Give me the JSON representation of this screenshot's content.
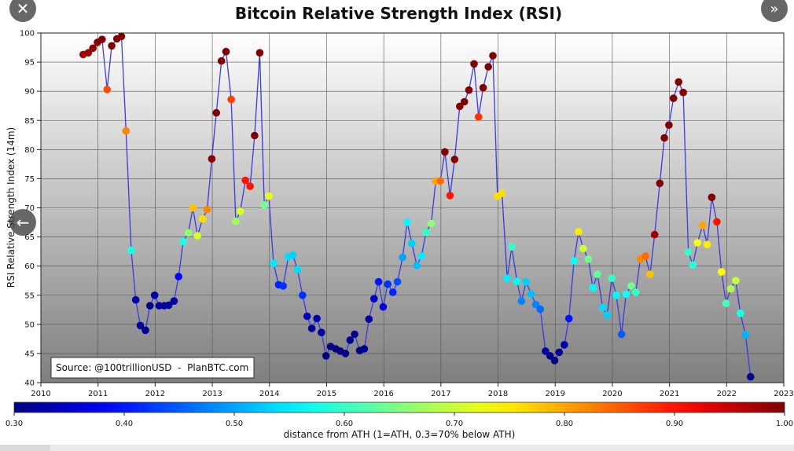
{
  "controls": {
    "close_glyph": "✕",
    "next_glyph": "»",
    "prev_glyph": "←"
  },
  "chart_data": {
    "type": "scatter",
    "title": "Bitcoin Relative Strength Index (RSI)",
    "ylabel": "RSI Relative Strength Index (14m)",
    "xlabel": "",
    "xlim": [
      2010,
      2023
    ],
    "ylim": [
      40,
      100
    ],
    "x_ticks": [
      2010,
      2011,
      2012,
      2013,
      2014,
      2015,
      2016,
      2017,
      2018,
      2019,
      2020,
      2021,
      2022,
      2023
    ],
    "y_ticks": [
      40,
      45,
      50,
      55,
      60,
      65,
      70,
      75,
      80,
      85,
      90,
      95,
      100
    ],
    "grid": true,
    "line_color": "#3a3adf",
    "source_note": "Source: @100trillionUSD  -  PlanBTC.com",
    "colorbar": {
      "label": "distance from ATH (1=ATH, 0.3=70% below ATH)",
      "min": 0.3,
      "max": 1.0,
      "ticks": [
        "0.30",
        "0.40",
        "0.50",
        "0.60",
        "0.70",
        "0.80",
        "0.90",
        "1.00"
      ]
    },
    "points": [
      {
        "x": 2010.74,
        "y": 96.3,
        "c": 0.98
      },
      {
        "x": 2010.83,
        "y": 96.6,
        "c": 0.98
      },
      {
        "x": 2010.91,
        "y": 97.4,
        "c": 0.99
      },
      {
        "x": 2010.99,
        "y": 98.4,
        "c": 1.0
      },
      {
        "x": 2011.07,
        "y": 98.9,
        "c": 1.0
      },
      {
        "x": 2011.16,
        "y": 90.3,
        "c": 0.86
      },
      {
        "x": 2011.24,
        "y": 97.8,
        "c": 1.0
      },
      {
        "x": 2011.33,
        "y": 99.0,
        "c": 1.0
      },
      {
        "x": 2011.41,
        "y": 99.4,
        "c": 1.0
      },
      {
        "x": 2011.49,
        "y": 83.2,
        "c": 0.82
      },
      {
        "x": 2011.58,
        "y": 62.7,
        "c": 0.58
      },
      {
        "x": 2011.66,
        "y": 54.2,
        "c": 0.33
      },
      {
        "x": 2011.74,
        "y": 49.8,
        "c": 0.32
      },
      {
        "x": 2011.83,
        "y": 49.0,
        "c": 0.31
      },
      {
        "x": 2011.91,
        "y": 53.2,
        "c": 0.31
      },
      {
        "x": 2011.99,
        "y": 55.0,
        "c": 0.32
      },
      {
        "x": 2012.07,
        "y": 53.2,
        "c": 0.32
      },
      {
        "x": 2012.16,
        "y": 53.2,
        "c": 0.32
      },
      {
        "x": 2012.24,
        "y": 53.3,
        "c": 0.32
      },
      {
        "x": 2012.33,
        "y": 54.0,
        "c": 0.32
      },
      {
        "x": 2012.41,
        "y": 58.2,
        "c": 0.39
      },
      {
        "x": 2012.49,
        "y": 64.2,
        "c": 0.58
      },
      {
        "x": 2012.58,
        "y": 65.7,
        "c": 0.66
      },
      {
        "x": 2012.66,
        "y": 70.0,
        "c": 0.78
      },
      {
        "x": 2012.74,
        "y": 65.2,
        "c": 0.71
      },
      {
        "x": 2012.83,
        "y": 68.1,
        "c": 0.76
      },
      {
        "x": 2012.91,
        "y": 69.7,
        "c": 0.82
      },
      {
        "x": 2012.99,
        "y": 78.4,
        "c": 0.99
      },
      {
        "x": 2013.07,
        "y": 86.3,
        "c": 1.0
      },
      {
        "x": 2013.16,
        "y": 95.2,
        "c": 1.0
      },
      {
        "x": 2013.24,
        "y": 96.8,
        "c": 1.0
      },
      {
        "x": 2013.33,
        "y": 88.6,
        "c": 0.87
      },
      {
        "x": 2013.41,
        "y": 67.7,
        "c": 0.67
      },
      {
        "x": 2013.49,
        "y": 69.4,
        "c": 0.71
      },
      {
        "x": 2013.58,
        "y": 74.7,
        "c": 0.9
      },
      {
        "x": 2013.66,
        "y": 73.7,
        "c": 0.9
      },
      {
        "x": 2013.74,
        "y": 82.4,
        "c": 1.0
      },
      {
        "x": 2013.83,
        "y": 96.6,
        "c": 1.0
      },
      {
        "x": 2013.91,
        "y": 70.5,
        "c": 0.64
      },
      {
        "x": 2013.99,
        "y": 72.0,
        "c": 0.72
      },
      {
        "x": 2014.07,
        "y": 60.5,
        "c": 0.55
      },
      {
        "x": 2014.16,
        "y": 56.8,
        "c": 0.41
      },
      {
        "x": 2014.24,
        "y": 56.6,
        "c": 0.42
      },
      {
        "x": 2014.33,
        "y": 61.6,
        "c": 0.54
      },
      {
        "x": 2014.41,
        "y": 61.9,
        "c": 0.53
      },
      {
        "x": 2014.49,
        "y": 59.4,
        "c": 0.54
      },
      {
        "x": 2014.58,
        "y": 55.0,
        "c": 0.42
      },
      {
        "x": 2014.66,
        "y": 51.4,
        "c": 0.34
      },
      {
        "x": 2014.74,
        "y": 49.3,
        "c": 0.32
      },
      {
        "x": 2014.83,
        "y": 51.0,
        "c": 0.33
      },
      {
        "x": 2014.91,
        "y": 48.6,
        "c": 0.32
      },
      {
        "x": 2014.99,
        "y": 44.6,
        "c": 0.3
      },
      {
        "x": 2015.07,
        "y": 46.2,
        "c": 0.3
      },
      {
        "x": 2015.16,
        "y": 45.8,
        "c": 0.3
      },
      {
        "x": 2015.24,
        "y": 45.4,
        "c": 0.3
      },
      {
        "x": 2015.33,
        "y": 45.0,
        "c": 0.3
      },
      {
        "x": 2015.41,
        "y": 47.3,
        "c": 0.31
      },
      {
        "x": 2015.49,
        "y": 48.3,
        "c": 0.31
      },
      {
        "x": 2015.58,
        "y": 45.5,
        "c": 0.3
      },
      {
        "x": 2015.66,
        "y": 45.8,
        "c": 0.31
      },
      {
        "x": 2015.74,
        "y": 50.9,
        "c": 0.32
      },
      {
        "x": 2015.83,
        "y": 54.4,
        "c": 0.35
      },
      {
        "x": 2015.91,
        "y": 57.3,
        "c": 0.4
      },
      {
        "x": 2015.99,
        "y": 53.0,
        "c": 0.36
      },
      {
        "x": 2016.07,
        "y": 56.9,
        "c": 0.42
      },
      {
        "x": 2016.16,
        "y": 55.5,
        "c": 0.41
      },
      {
        "x": 2016.24,
        "y": 57.3,
        "c": 0.44
      },
      {
        "x": 2016.33,
        "y": 61.5,
        "c": 0.5
      },
      {
        "x": 2016.41,
        "y": 67.5,
        "c": 0.56
      },
      {
        "x": 2016.49,
        "y": 63.9,
        "c": 0.53
      },
      {
        "x": 2016.58,
        "y": 60.1,
        "c": 0.52
      },
      {
        "x": 2016.66,
        "y": 61.7,
        "c": 0.55
      },
      {
        "x": 2016.74,
        "y": 65.8,
        "c": 0.6
      },
      {
        "x": 2016.83,
        "y": 67.3,
        "c": 0.66
      },
      {
        "x": 2016.91,
        "y": 74.6,
        "c": 0.8
      },
      {
        "x": 2016.99,
        "y": 74.6,
        "c": 0.84
      },
      {
        "x": 2017.07,
        "y": 79.6,
        "c": 1.0
      },
      {
        "x": 2017.16,
        "y": 72.1,
        "c": 0.9
      },
      {
        "x": 2017.24,
        "y": 78.3,
        "c": 1.0
      },
      {
        "x": 2017.33,
        "y": 87.4,
        "c": 1.0
      },
      {
        "x": 2017.41,
        "y": 88.2,
        "c": 1.0
      },
      {
        "x": 2017.49,
        "y": 90.2,
        "c": 1.0
      },
      {
        "x": 2017.58,
        "y": 94.7,
        "c": 1.0
      },
      {
        "x": 2017.66,
        "y": 85.6,
        "c": 0.88
      },
      {
        "x": 2017.74,
        "y": 90.6,
        "c": 1.0
      },
      {
        "x": 2017.83,
        "y": 94.2,
        "c": 1.0
      },
      {
        "x": 2017.91,
        "y": 96.1,
        "c": 1.0
      },
      {
        "x": 2017.99,
        "y": 72.0,
        "c": 0.76
      },
      {
        "x": 2018.07,
        "y": 72.5,
        "c": 0.76
      },
      {
        "x": 2018.16,
        "y": 57.9,
        "c": 0.55
      },
      {
        "x": 2018.24,
        "y": 63.3,
        "c": 0.6
      },
      {
        "x": 2018.33,
        "y": 57.4,
        "c": 0.56
      },
      {
        "x": 2018.41,
        "y": 54.0,
        "c": 0.48
      },
      {
        "x": 2018.49,
        "y": 57.3,
        "c": 0.53
      },
      {
        "x": 2018.58,
        "y": 55.2,
        "c": 0.52
      },
      {
        "x": 2018.66,
        "y": 53.4,
        "c": 0.48
      },
      {
        "x": 2018.74,
        "y": 52.6,
        "c": 0.46
      },
      {
        "x": 2018.83,
        "y": 45.4,
        "c": 0.32
      },
      {
        "x": 2018.91,
        "y": 44.6,
        "c": 0.31
      },
      {
        "x": 2018.99,
        "y": 43.8,
        "c": 0.3
      },
      {
        "x": 2019.07,
        "y": 45.2,
        "c": 0.31
      },
      {
        "x": 2019.16,
        "y": 46.5,
        "c": 0.33
      },
      {
        "x": 2019.24,
        "y": 51.0,
        "c": 0.4
      },
      {
        "x": 2019.33,
        "y": 60.9,
        "c": 0.57
      },
      {
        "x": 2019.41,
        "y": 65.9,
        "c": 0.75
      },
      {
        "x": 2019.49,
        "y": 63.0,
        "c": 0.7
      },
      {
        "x": 2019.58,
        "y": 61.2,
        "c": 0.64
      },
      {
        "x": 2019.66,
        "y": 56.3,
        "c": 0.56
      },
      {
        "x": 2019.74,
        "y": 58.6,
        "c": 0.63
      },
      {
        "x": 2019.83,
        "y": 52.9,
        "c": 0.54
      },
      {
        "x": 2019.91,
        "y": 51.6,
        "c": 0.53
      },
      {
        "x": 2019.99,
        "y": 57.9,
        "c": 0.6
      },
      {
        "x": 2020.07,
        "y": 55.0,
        "c": 0.56
      },
      {
        "x": 2020.16,
        "y": 48.3,
        "c": 0.45
      },
      {
        "x": 2020.24,
        "y": 55.2,
        "c": 0.57
      },
      {
        "x": 2020.33,
        "y": 56.6,
        "c": 0.64
      },
      {
        "x": 2020.41,
        "y": 55.5,
        "c": 0.6
      },
      {
        "x": 2020.49,
        "y": 61.2,
        "c": 0.82
      },
      {
        "x": 2020.58,
        "y": 61.7,
        "c": 0.84
      },
      {
        "x": 2020.66,
        "y": 58.6,
        "c": 0.78
      },
      {
        "x": 2020.74,
        "y": 65.4,
        "c": 0.98
      },
      {
        "x": 2020.83,
        "y": 74.2,
        "c": 1.0
      },
      {
        "x": 2020.91,
        "y": 82.0,
        "c": 1.0
      },
      {
        "x": 2020.99,
        "y": 84.2,
        "c": 1.0
      },
      {
        "x": 2021.07,
        "y": 88.8,
        "c": 1.0
      },
      {
        "x": 2021.16,
        "y": 91.6,
        "c": 1.0
      },
      {
        "x": 2021.24,
        "y": 89.8,
        "c": 1.0
      },
      {
        "x": 2021.33,
        "y": 62.4,
        "c": 0.6
      },
      {
        "x": 2021.41,
        "y": 60.2,
        "c": 0.59
      },
      {
        "x": 2021.49,
        "y": 64.0,
        "c": 0.73
      },
      {
        "x": 2021.58,
        "y": 67.0,
        "c": 0.8
      },
      {
        "x": 2021.66,
        "y": 63.7,
        "c": 0.75
      },
      {
        "x": 2021.74,
        "y": 71.8,
        "c": 1.0
      },
      {
        "x": 2021.83,
        "y": 67.6,
        "c": 0.9
      },
      {
        "x": 2021.91,
        "y": 59.0,
        "c": 0.74
      },
      {
        "x": 2021.99,
        "y": 53.6,
        "c": 0.61
      },
      {
        "x": 2022.07,
        "y": 56.1,
        "c": 0.68
      },
      {
        "x": 2022.16,
        "y": 57.5,
        "c": 0.7
      },
      {
        "x": 2022.24,
        "y": 51.9,
        "c": 0.58
      },
      {
        "x": 2022.33,
        "y": 48.2,
        "c": 0.51
      },
      {
        "x": 2022.42,
        "y": 41.0,
        "c": 0.31
      }
    ]
  }
}
